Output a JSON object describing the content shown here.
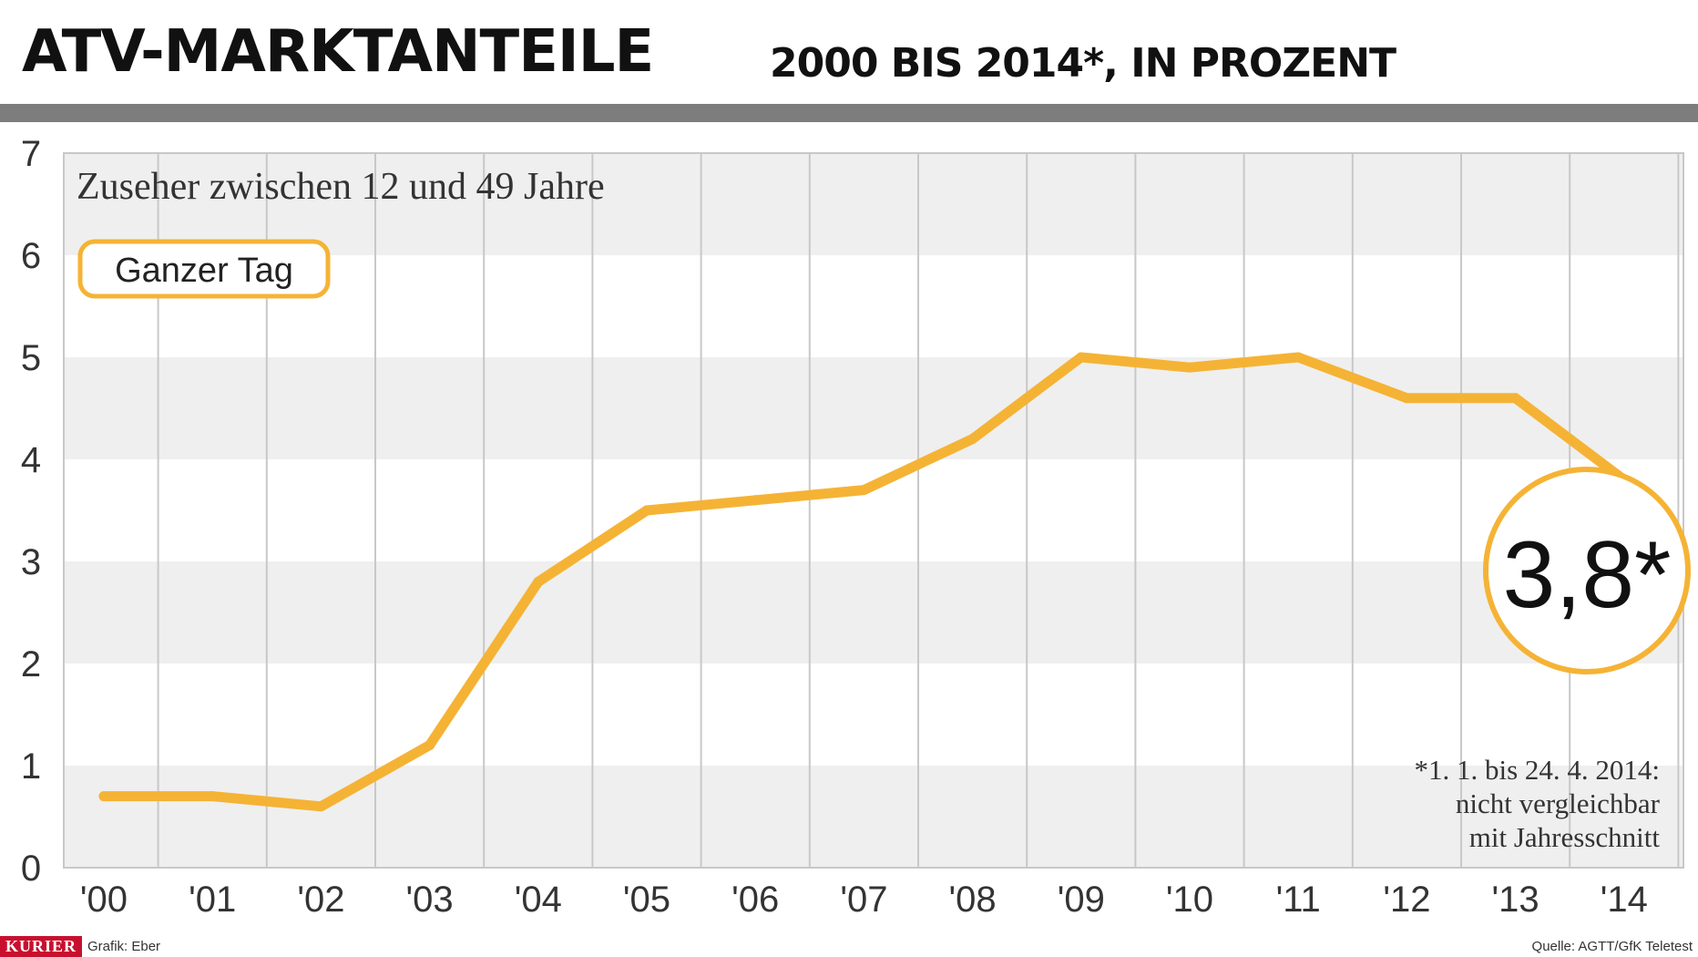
{
  "header": {
    "title": "ATV-MARKTANTEILE",
    "subtitle": "2000 BIS 2014*, IN PROZENT"
  },
  "chart_data": {
    "type": "line",
    "title": "Zuseher zwischen 12 und 49 Jahre",
    "categories": [
      "'00",
      "'01",
      "'02",
      "'03",
      "'04",
      "'05",
      "'06",
      "'07",
      "'08",
      "'09",
      "'10",
      "'11",
      "'12",
      "'13",
      "'14"
    ],
    "series": [
      {
        "name": "Ganzer Tag",
        "values": [
          0.7,
          0.7,
          0.6,
          1.2,
          2.8,
          3.5,
          3.6,
          3.7,
          4.2,
          5.0,
          4.9,
          5.0,
          4.6,
          4.6,
          3.8
        ]
      }
    ],
    "yticks": [
      "0",
      "1",
      "2",
      "3",
      "4",
      "5",
      "6",
      "7"
    ],
    "ylim": [
      0,
      7
    ],
    "grid": true,
    "legend_position": "top-left",
    "callout": "3,8*",
    "footnote": [
      "*1. 1. bis 24. 4. 2014:",
      "nicht vergleichbar",
      "mit Jahresschnitt"
    ],
    "colors": {
      "line": "#f5b335",
      "band_light": "#efefef",
      "band_white": "#ffffff",
      "grid": "#c8c8c8"
    }
  },
  "footer": {
    "brand": "KURIER",
    "credit": "Grafik: Eber",
    "source": "Quelle: AGTT/GfK Teletest"
  }
}
